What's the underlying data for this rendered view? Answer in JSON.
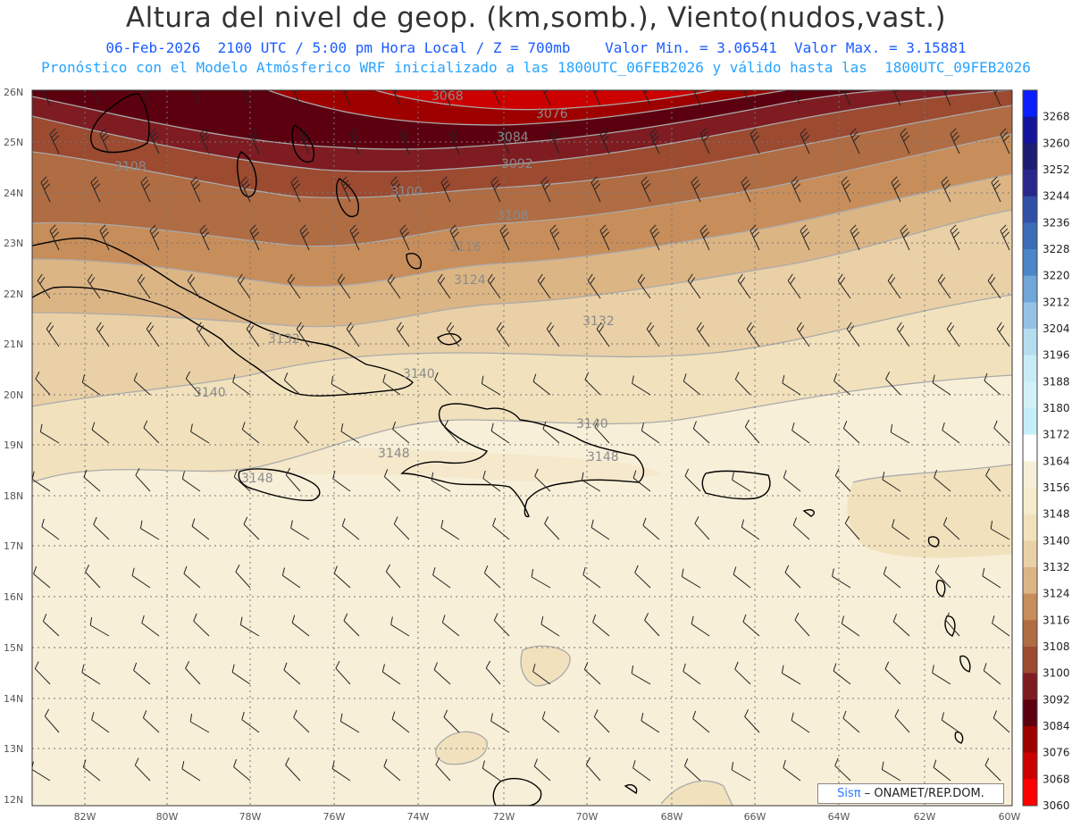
{
  "header": {
    "title": "Altura del nivel de geop. (km,somb.), Viento(nudos,vast.)",
    "line1": "06-Feb-2026  2100 UTC / 5:00 pm Hora Local / Z = 700mb    Valor Min. = 3.06541  Valor Max. = 3.15881",
    "line2": "Pronóstico con el Modelo Atmósferico WRF inicializado a las 1800UTC_06FEB2026 y válido hasta las  1800UTC_09FEB2026"
  },
  "map": {
    "lat_labels": [
      "26N",
      "25N",
      "24N",
      "23N",
      "22N",
      "21N",
      "20N",
      "19N",
      "18N",
      "17N",
      "16N",
      "15N",
      "14N",
      "13N",
      "12N"
    ],
    "lon_labels": [
      "82W",
      "80W",
      "78W",
      "76W",
      "74W",
      "72W",
      "70W",
      "68W",
      "66W",
      "64W",
      "62W",
      "60W"
    ],
    "contour_labels": [
      "3068",
      "3076",
      "3084",
      "3092",
      "3100",
      "3108",
      "3108",
      "3116",
      "3124",
      "3132",
      "3132",
      "3140",
      "3140",
      "3140",
      "3148",
      "3148",
      "3148"
    ]
  },
  "colorbar": {
    "levels": [
      "3268",
      "3260",
      "3252",
      "3244",
      "3236",
      "3228",
      "3220",
      "3212",
      "3204",
      "3196",
      "3188",
      "3180",
      "3172",
      "3164",
      "3156",
      "3148",
      "3140",
      "3132",
      "3124",
      "3116",
      "3108",
      "3100",
      "3092",
      "3084",
      "3076",
      "3068",
      "3060"
    ],
    "colors": [
      "#0b1eff",
      "#14149a",
      "#1c1c72",
      "#28288c",
      "#3050a8",
      "#3c6cb8",
      "#4a86c8",
      "#70a6d8",
      "#94c2e6",
      "#b6dcf0",
      "#c8ecf6",
      "#d2f2f8",
      "#c6eef8",
      "#ffffff",
      "#f8efd8",
      "#f6ebcc",
      "#f1e2bd",
      "#ead0a6",
      "#dcb585",
      "#c78d5a",
      "#b06c43",
      "#9c4a30",
      "#7e1c22",
      "#5c0010",
      "#9e0000",
      "#cc0000",
      "#ff0000"
    ]
  },
  "credit": {
    "sis": "Sisπ",
    "text": "– ONAMET/REP.DOM."
  }
}
